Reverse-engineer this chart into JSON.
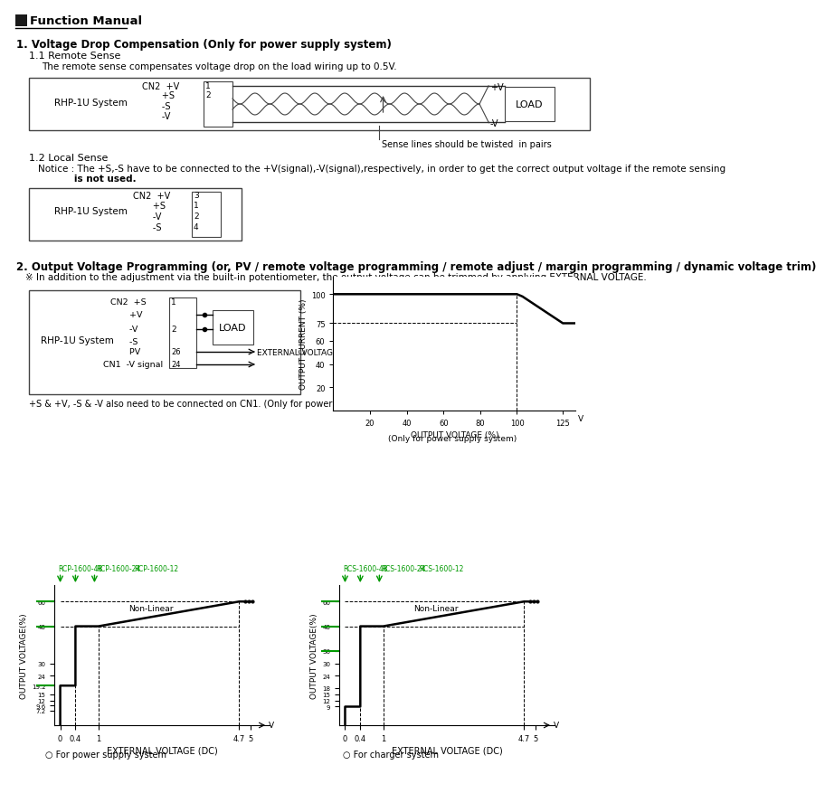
{
  "title": "Function Manual",
  "section1_title": "1. Voltage Drop Compensation (Only for power supply system)",
  "section1_1_title": "1.1 Remote Sense",
  "section1_1_text": "The remote sense compensates voltage drop on the load wiring up to 0.5V.",
  "section1_2_title": "1.2 Local Sense",
  "section1_2_notice1": "Notice : The +S,-S have to be connected to the +V(signal),-V(signal),respectively, in order to get the correct output voltage if the remote sensing",
  "section1_2_notice2": "           is not used.",
  "section2_title": "2. Output Voltage Programming (or, PV / remote voltage programming / remote adjust / margin programming / dynamic voltage trim)",
  "section2_note": "※ In addition to the adjustment via the built-in potentiometer, the output voltage can be trimmed by applying EXTERNAL VOLTAGE.",
  "sense_note": "Sense lines should be twisted  in pairs",
  "load_text": "LOAD",
  "rhp_text": "RHP-1U System",
  "external_dc_text": "EXTERNAL VOLTAGE (DC)",
  "plus_s_text": "+S & +V, -S & -V also need to be connected on CN1. (Only for power supply system)",
  "only_pss": "(Only for power supply system)",
  "for_pss": "○ For power supply system",
  "for_charger": "○ For charger system",
  "rcp_left": [
    "RCP-1600-48",
    "RCP-1600-24",
    "RCP-1600-12"
  ],
  "rcs_right": [
    "RCS-1600-48",
    "RCS-1600-24",
    "RCS-1600-12"
  ],
  "green": "#009900",
  "ext_voltage_label": "EXTERNAL VOLTAGE (DC)",
  "out_voltage_pct": "OUTPUT VOLTAGE (%)",
  "out_current_pct": "OUTPUT CURRENT (%)"
}
